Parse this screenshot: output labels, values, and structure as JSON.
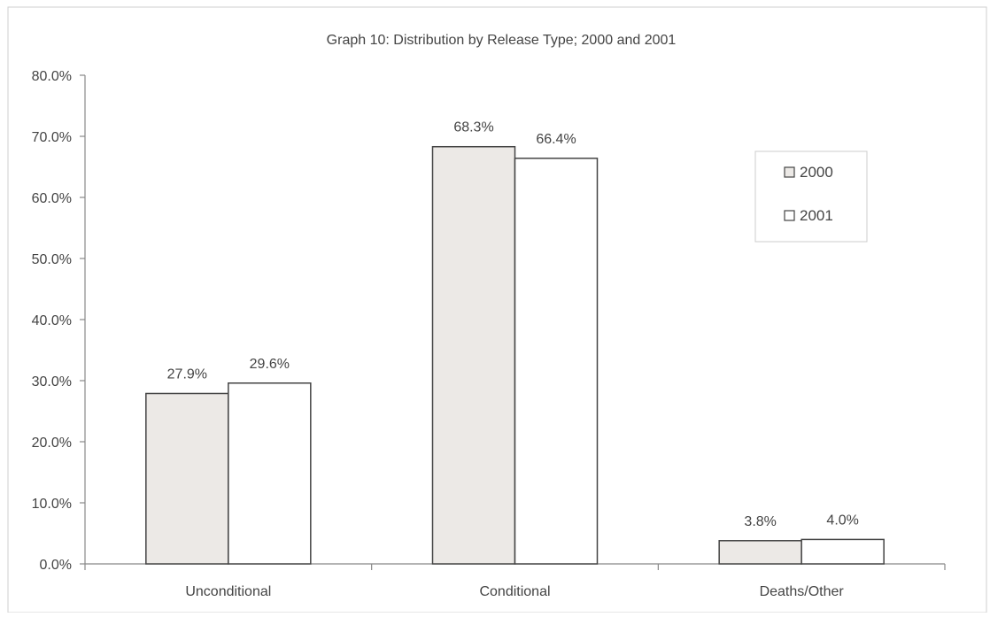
{
  "chart_data": {
    "type": "bar",
    "title": "Graph 10: Distribution by Release Type; 2000 and 2001",
    "xlabel": "",
    "ylabel": "",
    "categories": [
      "Unconditional",
      "Conditional",
      "Deaths/Other"
    ],
    "series": [
      {
        "name": "2000",
        "values": [
          27.9,
          68.3,
          3.8
        ],
        "labels": [
          "27.9%",
          "68.3%",
          "3.8%"
        ],
        "color": "#ece9e6"
      },
      {
        "name": "2001",
        "values": [
          29.6,
          66.4,
          4.0
        ],
        "labels": [
          "29.6%",
          "66.4%",
          "4.0%"
        ],
        "color": "#ffffff"
      }
    ],
    "ylim": [
      0,
      80
    ],
    "yticks": [
      0,
      10,
      20,
      30,
      40,
      50,
      60,
      70,
      80
    ],
    "ytick_labels": [
      "0.0%",
      "10.0%",
      "20.0%",
      "30.0%",
      "40.0%",
      "50.0%",
      "60.0%",
      "70.0%",
      "80.0%"
    ],
    "grid": false,
    "legend": {
      "placement": "top-right",
      "entries": [
        "2000",
        "2001"
      ]
    }
  }
}
